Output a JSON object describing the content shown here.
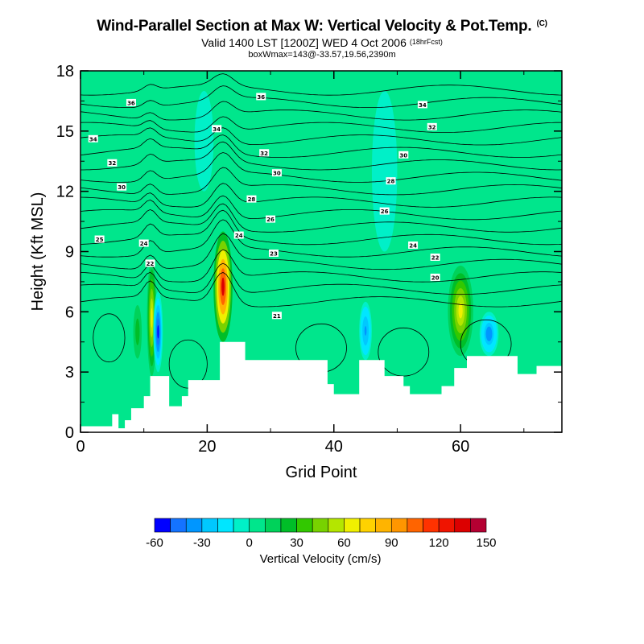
{
  "header": {
    "title": "Wind-Parallel Section at Max W: Vertical Velocity & Pot.Temp.",
    "title_flag": "(C)",
    "subtitle": "Valid 1400 LST [1200Z] WED 4 Oct 2006",
    "subtitle_fcst": "(18hrFcst)",
    "box_line": "boxWmax=143@-33.57,19.56,2390m"
  },
  "chart_data": {
    "type": "heatmap",
    "title": "Wind-Parallel Section at Max W: Vertical Velocity & Pot.Temp.",
    "xlabel": "Grid Point",
    "ylabel": "Height (Kft MSL)",
    "xlim": [
      0,
      76
    ],
    "ylim": [
      0,
      18
    ],
    "x_ticks": [
      0,
      20,
      40,
      60
    ],
    "y_ticks": [
      0,
      3,
      6,
      9,
      12,
      15,
      18
    ],
    "terrain_top_kft": [
      [
        0,
        0.3
      ],
      [
        4,
        0.3
      ],
      [
        5,
        0.9
      ],
      [
        6,
        0.2
      ],
      [
        7,
        0.6
      ],
      [
        8,
        1.2
      ],
      [
        10,
        1.8
      ],
      [
        11,
        2.8
      ],
      [
        13,
        2.8
      ],
      [
        14,
        1.3
      ],
      [
        16,
        1.8
      ],
      [
        17,
        2.6
      ],
      [
        21,
        2.6
      ],
      [
        22,
        4.5
      ],
      [
        25,
        4.5
      ],
      [
        26,
        3.6
      ],
      [
        38,
        3.6
      ],
      [
        39,
        2.4
      ],
      [
        40,
        1.9
      ],
      [
        42,
        1.9
      ],
      [
        44,
        3.6
      ],
      [
        47,
        3.6
      ],
      [
        48,
        2.8
      ],
      [
        51,
        2.3
      ],
      [
        52,
        1.9
      ],
      [
        56,
        1.9
      ],
      [
        57,
        2.3
      ],
      [
        59,
        3.2
      ],
      [
        61,
        3.8
      ],
      [
        68,
        3.8
      ],
      [
        69,
        2.9
      ],
      [
        71,
        2.9
      ],
      [
        72,
        3.3
      ],
      [
        76,
        3.6
      ]
    ],
    "w_cells": [
      {
        "x": [
          21,
          24
        ],
        "z": [
          4.5,
          10
        ],
        "w": 130
      },
      {
        "x": [
          10.5,
          12
        ],
        "z": [
          2.8,
          8.6
        ],
        "w": 65
      },
      {
        "x": [
          58,
          62
        ],
        "z": [
          3.8,
          8.3
        ],
        "w": 60
      },
      {
        "x": [
          8,
          10
        ],
        "z": [
          3,
          7
        ],
        "w": 25
      },
      {
        "x": [
          11.5,
          13
        ],
        "z": [
          3,
          7
        ],
        "w": -55
      },
      {
        "x": [
          44,
          46
        ],
        "z": [
          3.6,
          6.5
        ],
        "w": -35
      },
      {
        "x": [
          63,
          66
        ],
        "z": [
          3.8,
          6
        ],
        "w": -40
      },
      {
        "x": [
          46,
          50
        ],
        "z": [
          9,
          17
        ],
        "w": -10
      },
      {
        "x": [
          18,
          21
        ],
        "z": [
          12,
          17
        ],
        "w": -10
      }
    ],
    "theta_labels": [
      {
        "x": 8,
        "z": 16.4,
        "text": "36"
      },
      {
        "x": 28.5,
        "z": 16.7,
        "text": "36"
      },
      {
        "x": 54,
        "z": 16.3,
        "text": "34"
      },
      {
        "x": 2,
        "z": 14.6,
        "text": "34"
      },
      {
        "x": 21.5,
        "z": 15.1,
        "text": "34"
      },
      {
        "x": 55.5,
        "z": 15.2,
        "text": "32"
      },
      {
        "x": 5,
        "z": 13.4,
        "text": "32"
      },
      {
        "x": 29,
        "z": 13.9,
        "text": "32"
      },
      {
        "x": 51,
        "z": 13.8,
        "text": "30"
      },
      {
        "x": 6.5,
        "z": 12.2,
        "text": "30"
      },
      {
        "x": 31,
        "z": 12.9,
        "text": "30"
      },
      {
        "x": 49,
        "z": 12.5,
        "text": "28"
      },
      {
        "x": 27,
        "z": 11.6,
        "text": "28"
      },
      {
        "x": 48,
        "z": 11,
        "text": "26"
      },
      {
        "x": 30,
        "z": 10.6,
        "text": "26"
      },
      {
        "x": 3,
        "z": 9.6,
        "text": "25"
      },
      {
        "x": 10,
        "z": 9.4,
        "text": "24"
      },
      {
        "x": 25,
        "z": 9.8,
        "text": "24"
      },
      {
        "x": 52.5,
        "z": 9.3,
        "text": "24"
      },
      {
        "x": 30.5,
        "z": 8.9,
        "text": "23"
      },
      {
        "x": 56,
        "z": 8.7,
        "text": "22"
      },
      {
        "x": 11,
        "z": 8.4,
        "text": "22"
      },
      {
        "x": 56,
        "z": 7.7,
        "text": "20"
      },
      {
        "x": 31,
        "z": 5.8,
        "text": "21"
      }
    ],
    "colorbar": {
      "label": "Vertical Velocity (cm/s)",
      "ticks": [
        "-60",
        "-30",
        "0",
        "30",
        "60",
        "90",
        "120",
        "150"
      ],
      "colors": [
        "#0000ff",
        "#1473ff",
        "#0096ff",
        "#00c8ff",
        "#00e6ff",
        "#00f0c8",
        "#00e68c",
        "#00d25a",
        "#00be28",
        "#32c800",
        "#78d200",
        "#b4e600",
        "#f0f000",
        "#ffd200",
        "#ffb400",
        "#ff9600",
        "#ff6400",
        "#ff3200",
        "#f01400",
        "#dc0000",
        "#b40032"
      ],
      "range": [
        -60,
        150
      ]
    },
    "grid": false,
    "legend": "bottom"
  }
}
